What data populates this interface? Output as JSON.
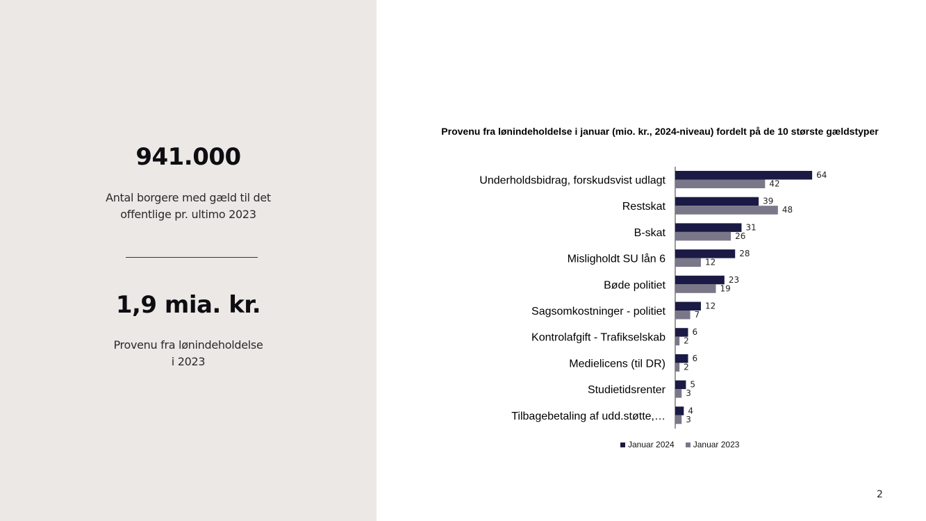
{
  "left_panel": {
    "stat1_value": "941.000",
    "stat1_label_line1": "Antal borgere med gæld til det",
    "stat1_label_line2": "offentlige pr. ultimo 2023",
    "stat2_value": "1,9 mia. kr.",
    "stat2_label_line1": "Provenu fra lønindeholdelse",
    "stat2_label_line2": "i 2023"
  },
  "page_number": "2",
  "colors": {
    "left_panel_bg": "#ece8e6",
    "series_2024": "#1b1a45",
    "series_2023": "#7a7789"
  },
  "chart_data": {
    "type": "bar",
    "orientation": "horizontal",
    "title": "Provenu fra lønindeholdelse i januar (mio. kr., 2024-niveau) fordelt på de 10 største gældstyper",
    "categories": [
      "Underholdsbidrag, forskudsvist udlagt",
      "Restskat",
      "B-skat",
      "Misligholdt SU lån 6",
      "Bøde politiet",
      "Sagsomkostninger - politiet",
      "Kontrolafgift - Trafikselskab",
      "Medielicens (til DR)",
      "Studietidsrenter",
      "Tilbagebetaling af udd.støtte,…"
    ],
    "series": [
      {
        "name": "Januar 2024",
        "values": [
          64,
          39,
          31,
          28,
          23,
          12,
          6,
          6,
          5,
          4
        ]
      },
      {
        "name": "Januar 2023",
        "values": [
          42,
          48,
          26,
          12,
          19,
          7,
          2,
          2,
          3,
          3
        ]
      }
    ],
    "data_labels": true,
    "legend_position": "bottom",
    "grid": false
  }
}
